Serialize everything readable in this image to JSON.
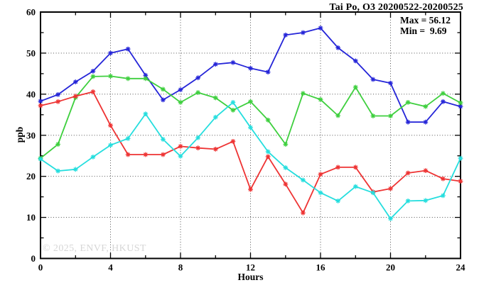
{
  "title": "Tai Po, O3 20200522-20200525",
  "stats": {
    "max_label": "Max = 56.12",
    "min_label": "Min =  9.69"
  },
  "watermark": "© 2025, ENVF, HKUST",
  "chart_data": {
    "type": "line",
    "title": "Tai Po, O3 20200522-20200525",
    "xlabel": "Hours",
    "ylabel": "ppb",
    "xlim": [
      0,
      24
    ],
    "ylim": [
      0,
      60
    ],
    "grid": "dotted lines at major ticks, ticks on all four sides",
    "legend_position": "none",
    "x_major_ticks": [
      0,
      4,
      8,
      12,
      16,
      20,
      24
    ],
    "x_minor_ticks": [
      2,
      6,
      10,
      14,
      18,
      22
    ],
    "y_major_ticks": [
      0,
      10,
      20,
      30,
      40,
      50,
      60
    ],
    "y_minor_ticks": [
      5,
      15,
      25,
      35,
      45,
      55
    ],
    "marker": "asterisk",
    "x": [
      0,
      1,
      2,
      3,
      4,
      5,
      6,
      7,
      8,
      9,
      10,
      11,
      12,
      13,
      14,
      15,
      16,
      17,
      18,
      19,
      20,
      21,
      22,
      23,
      24
    ],
    "series": [
      {
        "name": "blue",
        "color": "#2525d8",
        "values": [
          38.3,
          39.9,
          43.0,
          45.6,
          50.0,
          51.0,
          44.6,
          38.6,
          41.1,
          44.0,
          47.3,
          47.7,
          46.3,
          45.4,
          54.4,
          55.0,
          56.12,
          51.3,
          48.1,
          43.6,
          42.7,
          33.2,
          33.2,
          38.2,
          37.0
        ]
      },
      {
        "name": "green",
        "color": "#3ecf3e",
        "values": [
          24.4,
          27.8,
          39.2,
          44.3,
          44.4,
          43.8,
          43.8,
          41.2,
          38.0,
          40.4,
          39.1,
          36.1,
          38.2,
          33.7,
          27.8,
          40.2,
          38.7,
          34.8,
          41.7,
          34.7,
          34.7,
          38.0,
          37.0,
          40.2,
          37.9
        ]
      },
      {
        "name": "red",
        "color": "#ee3333",
        "values": [
          37.2,
          38.2,
          39.5,
          40.6,
          32.4,
          25.3,
          25.3,
          25.3,
          27.3,
          26.9,
          26.6,
          28.5,
          16.8,
          24.8,
          18.1,
          11.1,
          20.5,
          22.2,
          22.2,
          16.2,
          17.0,
          20.8,
          21.4,
          19.4,
          18.8
        ]
      },
      {
        "name": "cyan",
        "color": "#25dede",
        "values": [
          24.2,
          21.3,
          21.7,
          24.7,
          27.6,
          29.2,
          35.2,
          29.0,
          24.9,
          29.4,
          34.4,
          38.0,
          31.9,
          26.0,
          22.1,
          19.1,
          16.0,
          14.0,
          17.5,
          16.0,
          9.69,
          14.0,
          14.1,
          15.3,
          24.4
        ]
      }
    ],
    "annotations": {
      "max": 56.12,
      "min": 9.69
    }
  }
}
